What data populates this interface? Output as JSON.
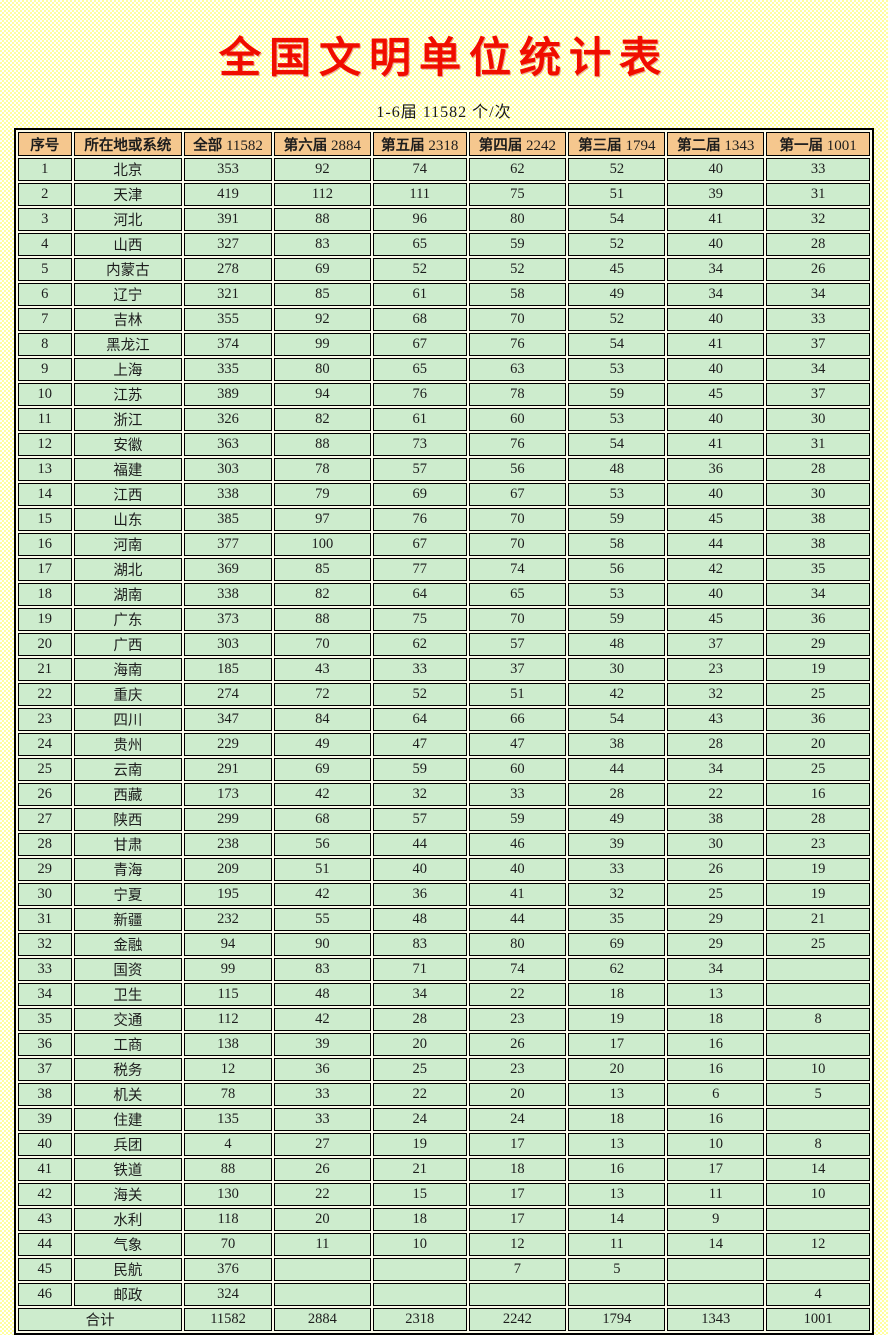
{
  "page": {
    "title": "全国文明单位统计表",
    "subtitle": "1-6届 11582 个/次"
  },
  "colors": {
    "title_red": "#f00d00",
    "header_bg": "#f5c78e",
    "cell_green": "#cdeccd",
    "grid_border": "#000000",
    "page_bg_checker": "#ffff9e"
  },
  "table": {
    "columns": [
      {
        "label": "序号",
        "count": ""
      },
      {
        "label": "所在地或系统",
        "count": ""
      },
      {
        "label": "全部",
        "count": "11582"
      },
      {
        "label": "第六届",
        "count": "2884"
      },
      {
        "label": "第五届",
        "count": "2318"
      },
      {
        "label": "第四届",
        "count": "2242"
      },
      {
        "label": "第三届",
        "count": "1794"
      },
      {
        "label": "第二届",
        "count": "1343"
      },
      {
        "label": "第一届",
        "count": "1001"
      }
    ],
    "rows": [
      [
        "1",
        "北京",
        "353",
        "92",
        "74",
        "62",
        "52",
        "40",
        "33"
      ],
      [
        "2",
        "天津",
        "419",
        "112",
        "111",
        "75",
        "51",
        "39",
        "31"
      ],
      [
        "3",
        "河北",
        "391",
        "88",
        "96",
        "80",
        "54",
        "41",
        "32"
      ],
      [
        "4",
        "山西",
        "327",
        "83",
        "65",
        "59",
        "52",
        "40",
        "28"
      ],
      [
        "5",
        "内蒙古",
        "278",
        "69",
        "52",
        "52",
        "45",
        "34",
        "26"
      ],
      [
        "6",
        "辽宁",
        "321",
        "85",
        "61",
        "58",
        "49",
        "34",
        "34"
      ],
      [
        "7",
        "吉林",
        "355",
        "92",
        "68",
        "70",
        "52",
        "40",
        "33"
      ],
      [
        "8",
        "黑龙江",
        "374",
        "99",
        "67",
        "76",
        "54",
        "41",
        "37"
      ],
      [
        "9",
        "上海",
        "335",
        "80",
        "65",
        "63",
        "53",
        "40",
        "34"
      ],
      [
        "10",
        "江苏",
        "389",
        "94",
        "76",
        "78",
        "59",
        "45",
        "37"
      ],
      [
        "11",
        "浙江",
        "326",
        "82",
        "61",
        "60",
        "53",
        "40",
        "30"
      ],
      [
        "12",
        "安徽",
        "363",
        "88",
        "73",
        "76",
        "54",
        "41",
        "31"
      ],
      [
        "13",
        "福建",
        "303",
        "78",
        "57",
        "56",
        "48",
        "36",
        "28"
      ],
      [
        "14",
        "江西",
        "338",
        "79",
        "69",
        "67",
        "53",
        "40",
        "30"
      ],
      [
        "15",
        "山东",
        "385",
        "97",
        "76",
        "70",
        "59",
        "45",
        "38"
      ],
      [
        "16",
        "河南",
        "377",
        "100",
        "67",
        "70",
        "58",
        "44",
        "38"
      ],
      [
        "17",
        "湖北",
        "369",
        "85",
        "77",
        "74",
        "56",
        "42",
        "35"
      ],
      [
        "18",
        "湖南",
        "338",
        "82",
        "64",
        "65",
        "53",
        "40",
        "34"
      ],
      [
        "19",
        "广东",
        "373",
        "88",
        "75",
        "70",
        "59",
        "45",
        "36"
      ],
      [
        "20",
        "广西",
        "303",
        "70",
        "62",
        "57",
        "48",
        "37",
        "29"
      ],
      [
        "21",
        "海南",
        "185",
        "43",
        "33",
        "37",
        "30",
        "23",
        "19"
      ],
      [
        "22",
        "重庆",
        "274",
        "72",
        "52",
        "51",
        "42",
        "32",
        "25"
      ],
      [
        "23",
        "四川",
        "347",
        "84",
        "64",
        "66",
        "54",
        "43",
        "36"
      ],
      [
        "24",
        "贵州",
        "229",
        "49",
        "47",
        "47",
        "38",
        "28",
        "20"
      ],
      [
        "25",
        "云南",
        "291",
        "69",
        "59",
        "60",
        "44",
        "34",
        "25"
      ],
      [
        "26",
        "西藏",
        "173",
        "42",
        "32",
        "33",
        "28",
        "22",
        "16"
      ],
      [
        "27",
        "陕西",
        "299",
        "68",
        "57",
        "59",
        "49",
        "38",
        "28"
      ],
      [
        "28",
        "甘肃",
        "238",
        "56",
        "44",
        "46",
        "39",
        "30",
        "23"
      ],
      [
        "29",
        "青海",
        "209",
        "51",
        "40",
        "40",
        "33",
        "26",
        "19"
      ],
      [
        "30",
        "宁夏",
        "195",
        "42",
        "36",
        "41",
        "32",
        "25",
        "19"
      ],
      [
        "31",
        "新疆",
        "232",
        "55",
        "48",
        "44",
        "35",
        "29",
        "21"
      ],
      [
        "32",
        "金融",
        "94",
        "90",
        "83",
        "80",
        "69",
        "29",
        "25"
      ],
      [
        "33",
        "国资",
        "99",
        "83",
        "71",
        "74",
        "62",
        "34",
        ""
      ],
      [
        "34",
        "卫生",
        "115",
        "48",
        "34",
        "22",
        "18",
        "13",
        ""
      ],
      [
        "35",
        "交通",
        "112",
        "42",
        "28",
        "23",
        "19",
        "18",
        "8"
      ],
      [
        "36",
        "工商",
        "138",
        "39",
        "20",
        "26",
        "17",
        "16",
        ""
      ],
      [
        "37",
        "税务",
        "12",
        "36",
        "25",
        "23",
        "20",
        "16",
        "10"
      ],
      [
        "38",
        "机关",
        "78",
        "33",
        "22",
        "20",
        "13",
        "6",
        "5"
      ],
      [
        "39",
        "住建",
        "135",
        "33",
        "24",
        "24",
        "18",
        "16",
        ""
      ],
      [
        "40",
        "兵团",
        "4",
        "27",
        "19",
        "17",
        "13",
        "10",
        "8"
      ],
      [
        "41",
        "铁道",
        "88",
        "26",
        "21",
        "18",
        "16",
        "17",
        "14"
      ],
      [
        "42",
        "海关",
        "130",
        "22",
        "15",
        "17",
        "13",
        "11",
        "10"
      ],
      [
        "43",
        "水利",
        "118",
        "20",
        "18",
        "17",
        "14",
        "9",
        ""
      ],
      [
        "44",
        "气象",
        "70",
        "11",
        "10",
        "12",
        "11",
        "14",
        "12"
      ],
      [
        "45",
        "民航",
        "376",
        "",
        "",
        "7",
        "5",
        "",
        ""
      ],
      [
        "46",
        "邮政",
        "324",
        "",
        "",
        "",
        "",
        "",
        "4"
      ]
    ],
    "total": {
      "label": "合计",
      "values": [
        "11582",
        "2884",
        "2318",
        "2242",
        "1794",
        "1343",
        "1001"
      ]
    }
  }
}
